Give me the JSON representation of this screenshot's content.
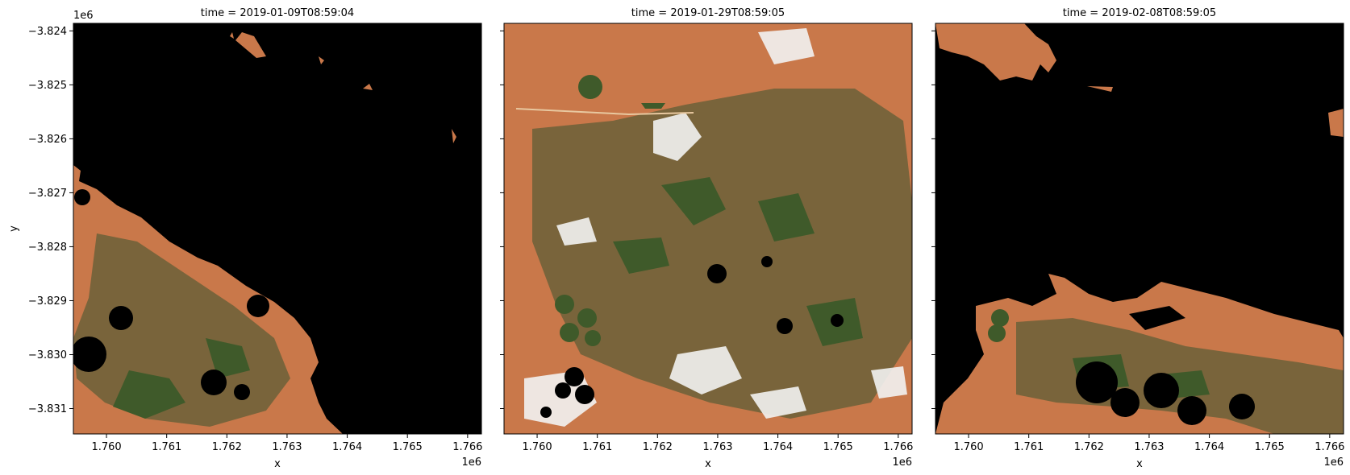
{
  "chart_data": {
    "type": "image_facets",
    "xlabel": "x",
    "ylabel": "y",
    "x_offset_text": "1e6",
    "y_offset_text": "1e6",
    "x_ticks": [
      1.76,
      1.761,
      1.762,
      1.763,
      1.764,
      1.765,
      1.766
    ],
    "x_tick_labels": [
      "1.760",
      "1.761",
      "1.762",
      "1.763",
      "1.764",
      "1.765",
      "1.766"
    ],
    "y_ticks": [
      -3.824,
      -3.825,
      -3.826,
      -3.827,
      -3.828,
      -3.829,
      -3.83,
      -3.831
    ],
    "y_tick_labels": [
      "−3.824",
      "−3.825",
      "−3.826",
      "−3.827",
      "−3.828",
      "−3.829",
      "−3.830",
      "−3.831"
    ],
    "xlim": [
      1.75945,
      1.76623
    ],
    "ylim": [
      -3.83147,
      -3.82386
    ],
    "panels": [
      {
        "title": "time = 2019-01-09T08:59:04",
        "coverage": "mostly masked (black); visible terrain in lower-left"
      },
      {
        "title": "time = 2019-01-29T08:59:05",
        "coverage": "mostly clear with scattered clouds"
      },
      {
        "title": "time = 2019-02-08T08:59:05",
        "coverage": "mostly masked (black); visible terrain at top-left and bottom"
      }
    ],
    "colors": {
      "masked": "#000000",
      "bare_soil": "#c9784a",
      "crop_green": "#3f5a2a",
      "cloud": "#f2f2f2"
    }
  }
}
